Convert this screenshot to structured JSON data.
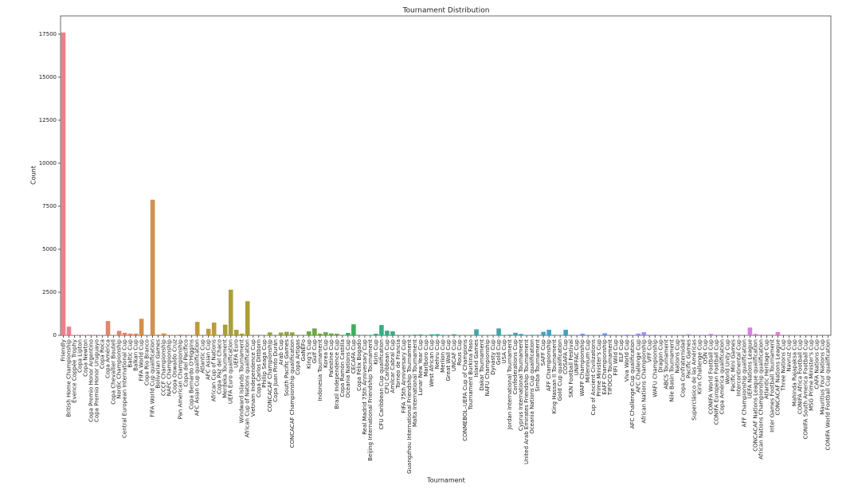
{
  "chart_data": {
    "type": "bar",
    "title": "Tournament Distribution",
    "xlabel": "Tournament",
    "ylabel": "Count",
    "categories": [
      "Friendly",
      "British Home Championship",
      "Évence Coppée Trophy",
      "Copa Lipton",
      "Copa Newton",
      "Copa Premio Honor Argentino",
      "Copa Premio Honor Uruguayo",
      "Copa Roca",
      "Copa América",
      "Copa Chevallier Boutell",
      "Nordic Championship",
      "Central European International Cup",
      "Baltic Cup",
      "Balkan Cup",
      "FIFA World Cup",
      "Copa Rio Branco",
      "FIFA World Cup qualification",
      "Bolivarian Games",
      "CCCF Championship",
      "NAFC Championship",
      "Copa Oswaldo Cruz",
      "Pan American Championship",
      "Copa del Pacífico",
      "Copa Bernardo O'Higgins",
      "AFC Asian Cup qualification",
      "Atlantic Cup",
      "AFC Asian Cup",
      "African Cup of Nations",
      "Copa Paz del Chaco",
      "Merdeka Tournament",
      "UEFA Euro qualification",
      "UEFA Euro",
      "Windward Islands Tournament",
      "African Cup of Nations qualification",
      "Vietnam Independence Cup",
      "Copa Carlos Dittborn",
      "Phillip Seaga Cup",
      "CONCACAF Championship",
      "Copa Juan Pinto Durán",
      "Arab Cup",
      "South Pacific Games",
      "CONCACAF Championship qualification",
      "Copa Artigas",
      "GaNEFo",
      "King's Cup",
      "Gulf Cup",
      "Indonesia Tournament",
      "Korea Cup",
      "Palestine Cup",
      "Brazil Independence Cup",
      "Copa Ramón Castilla",
      "Oceania Nations Cup",
      "CECAFA Cup",
      "Copa Félix Bogado",
      "Real Madrid 75th Anniversary Cup",
      "Beijing International Friendship Tournament",
      "Kirin Cup",
      "CFU Caribbean Cup qualification",
      "CFU Caribbean Cup",
      "Amílcar Cabral Cup",
      "Torneo de Francia",
      "FIFA 75th Anniversary Cup",
      "Guangzhou International Friendship Tournament",
      "Malta International Tournament",
      "Lunar New Year Cup",
      "Marlboro Cup",
      "West African Cup",
      "Nehru Cup",
      "Merlion Cup",
      "Great Wall Cup",
      "UNCAF Cup",
      "Rous Cup",
      "CONMEBOL–UEFA Cup of Champions",
      "Tournament Burkina Faso",
      "Island Games",
      "Dakar Tournament",
      "NAFU Championship",
      "Dynasty Cup",
      "Gold Cup",
      "USA Cup",
      "Jordan International Tournament",
      "Confederations Cup",
      "Cyprus International Tournament",
      "United Arab Emirates Friendship Tournament",
      "Oceania Nations Cup qualification",
      "Simba Tournament",
      "SAFF Cup",
      "AFF Championship",
      "King Hassan II Tournament",
      "Gold Cup qualification",
      "COSAFA Cup",
      "SKN Football Festival",
      "UNIFFAC Cup",
      "WAFF Championship",
      "Millennium Cup",
      "Cup of Ancient Civilizations",
      "Prime Minister's Cup",
      "EAFF Championship",
      "TIFOCO Tournament",
      "FIFI Wild Cup",
      "ELF Cup",
      "Viva World Cup",
      "AFC Challenge Cup qualification",
      "AFC Challenge Cup",
      "African Nations Championship",
      "VFF Cup",
      "WAFU Championship",
      "Dragon Cup",
      "ABCS Tournament",
      "Nile Basin Tournament",
      "Nations Cup",
      "Copa Confraternidad",
      "Pacific Games",
      "Superclásico de las Américas",
      "Kirin Challenge Cup",
      "OSN Cup",
      "CONIFA World Football Cup",
      "CONIFA European Football Cup",
      "Copa América qualification",
      "World Unity Cup",
      "Pacific Mini Games",
      "Intercontinental Cup",
      "AFF Championship qualification",
      "UEFA Nations League",
      "CONCACAF Nations League qualification",
      "African Nations Championship qualification",
      "Atlantic Heritage Cup",
      "Inter Games Football Tournament",
      "CONCACAF Nations League",
      "Three Nations Cup",
      "Navruz Cup",
      "Mahinda Rajapaksa Cup",
      "CONIFA Africa Football Cup",
      "CONIFA South America Football Cup",
      "MSG Prime Minister's Cup",
      "CAFA Nations Cup",
      "Mauritius Four Nations Cup",
      "CONIFA World Football Cup qualification"
    ],
    "values": [
      17600,
      500,
      20,
      30,
      25,
      15,
      12,
      20,
      830,
      20,
      260,
      150,
      100,
      100,
      960,
      15,
      7880,
      40,
      110,
      15,
      20,
      40,
      5,
      20,
      780,
      10,
      380,
      740,
      10,
      620,
      2650,
      320,
      100,
      1980,
      20,
      10,
      15,
      170,
      10,
      160,
      200,
      170,
      10,
      10,
      230,
      400,
      100,
      180,
      110,
      90,
      10,
      140,
      640,
      10,
      5,
      15,
      90,
      600,
      270,
      230,
      10,
      5,
      10,
      40,
      50,
      20,
      60,
      70,
      30,
      10,
      60,
      15,
      5,
      10,
      350,
      10,
      20,
      30,
      400,
      20,
      40,
      150,
      80,
      15,
      30,
      10,
      200,
      320,
      10,
      20,
      320,
      10,
      20,
      90,
      10,
      10,
      10,
      120,
      10,
      10,
      15,
      40,
      20,
      100,
      180,
      10,
      40,
      10,
      15,
      10,
      10,
      5,
      60,
      10,
      30,
      10,
      80,
      30,
      5,
      10,
      20,
      30,
      10,
      450,
      80,
      40,
      5,
      10,
      190,
      10,
      10,
      10,
      10,
      5,
      5,
      10,
      5,
      5
    ],
    "colors": [
      "#e7828d",
      "#e7828d",
      "#e7828d",
      "#e7828d",
      "#e7828d",
      "#e7828d",
      "#e7828d",
      "#e7828d",
      "#e0876b",
      "#e0876b",
      "#e0876b",
      "#e0876b",
      "#e0876b",
      "#e0876b",
      "#d1904f",
      "#d1904f",
      "#d1904f",
      "#d1904f",
      "#d1904f",
      "#d1904f",
      "#d1904f",
      "#d1904f",
      "#c0983f",
      "#c0983f",
      "#c0983f",
      "#c0983f",
      "#c0983f",
      "#c0983f",
      "#c0983f",
      "#a99e3c",
      "#a99e3c",
      "#a99e3c",
      "#a99e3c",
      "#a99e3c",
      "#a99e3c",
      "#a99e3c",
      "#a99e3c",
      "#8fa43d",
      "#8fa43d",
      "#8fa43d",
      "#8fa43d",
      "#8fa43d",
      "#8fa43d",
      "#8fa43d",
      "#6aa940",
      "#6aa940",
      "#6aa940",
      "#6aa940",
      "#6aa940",
      "#6aa940",
      "#3fae5b",
      "#3fae5b",
      "#3fae5b",
      "#3fae5b",
      "#3fae5b",
      "#3fae5b",
      "#3aab85",
      "#3aab85",
      "#3aab85",
      "#3aab85",
      "#3aab85",
      "#3aab85",
      "#3aab85",
      "#3aab85",
      "#3ba99c",
      "#3ba99c",
      "#3ba99c",
      "#3ba99c",
      "#3ba99c",
      "#3ba99c",
      "#3ba99c",
      "#3ba99c",
      "#3ba99c",
      "#3da6ad",
      "#3da6ad",
      "#3da6ad",
      "#3da6ad",
      "#3da6ad",
      "#3da6ad",
      "#3da6ad",
      "#3da6ad",
      "#3da6ad",
      "#42a2c4",
      "#42a2c4",
      "#42a2c4",
      "#42a2c4",
      "#42a2c4",
      "#42a2c4",
      "#42a2c4",
      "#42a2c4",
      "#42a2c4",
      "#6a9ae3",
      "#6a9ae3",
      "#6a9ae3",
      "#6a9ae3",
      "#6a9ae3",
      "#6a9ae3",
      "#6a9ae3",
      "#6a9ae3",
      "#6a9ae3",
      "#9c8ff0",
      "#9c8ff0",
      "#9c8ff0",
      "#9c8ff0",
      "#9c8ff0",
      "#9c8ff0",
      "#9c8ff0",
      "#9c8ff0",
      "#9c8ff0",
      "#c185ea",
      "#c185ea",
      "#c185ea",
      "#c185ea",
      "#c185ea",
      "#c185ea",
      "#c185ea",
      "#c185ea",
      "#c185ea",
      "#d77fe0",
      "#d77fe0",
      "#d77fe0",
      "#d77fe0",
      "#d77fe0",
      "#d77fe0",
      "#d77fe0",
      "#d77fe0",
      "#e07ed0",
      "#e07ed0",
      "#e07ed0",
      "#e07ed0",
      "#e07ed0",
      "#e07ed0",
      "#e07ed0",
      "#e07ed0",
      "#e681b0",
      "#e681b0",
      "#e681b0",
      "#e681b0",
      "#e681b0"
    ],
    "ylim": [
      0,
      18560
    ],
    "yticks": [
      0,
      2500,
      5000,
      7500,
      10000,
      12500,
      15000,
      17500
    ],
    "grid": false
  }
}
